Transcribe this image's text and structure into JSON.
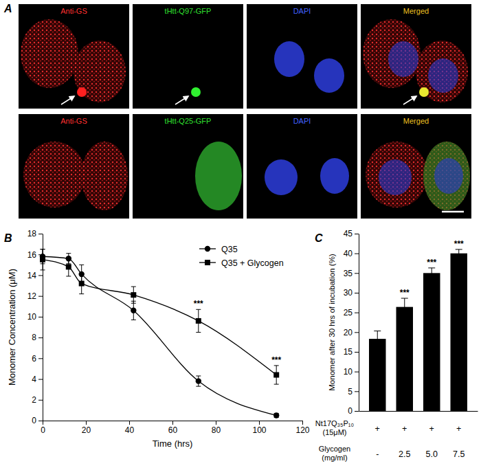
{
  "panel_a": {
    "label": "A",
    "rows": [
      {
        "labels": [
          "Anti-GS",
          "tHtt-Q97-GFP",
          "DAPI",
          "Merged"
        ]
      },
      {
        "labels": [
          "Anti-GS",
          "tHtt-Q25-GFP",
          "DAPI",
          "Merged"
        ]
      }
    ],
    "label_colors": [
      "#ff3030",
      "#30e030",
      "#4060ff",
      "#f0c020"
    ]
  },
  "chart_data": [
    {
      "type": "line",
      "panel_label": "B",
      "x_label": "Time (hrs)",
      "y_label": "Monomer Concentration (μM)",
      "xlim": [
        0,
        120
      ],
      "xticks": [
        0,
        20,
        40,
        60,
        80,
        100,
        120
      ],
      "ylim": [
        0,
        18
      ],
      "yticks": [
        0,
        2,
        4,
        6,
        8,
        10,
        12,
        14,
        16,
        18
      ],
      "grid": false,
      "legend": "upper right",
      "x": [
        0,
        12,
        18,
        42,
        72,
        108
      ],
      "series": [
        {
          "name": "Q35",
          "color": "#000000",
          "marker": "circle",
          "line_style": "solid",
          "values": [
            15.8,
            15.6,
            14.1,
            10.6,
            3.8,
            0.5
          ],
          "errors": [
            0.7,
            0.5,
            0.9,
            0.9,
            0.5,
            0.2
          ],
          "significance": [
            null,
            null,
            null,
            null,
            null,
            null
          ]
        },
        {
          "name": "Q35 + Glycogen",
          "color": "#000000",
          "marker": "square",
          "line_style": "solid",
          "values": [
            15.5,
            14.8,
            13.2,
            12.1,
            9.6,
            4.4
          ],
          "errors": [
            1.0,
            0.9,
            1.0,
            0.8,
            1.1,
            0.9
          ],
          "significance": [
            null,
            null,
            null,
            null,
            "***",
            "***"
          ]
        }
      ]
    },
    {
      "type": "bar",
      "panel_label": "C",
      "y_label": "Monomer after 30 hrs of incubation (%)",
      "categories": [
        null,
        null,
        null,
        null
      ],
      "values": [
        18.3,
        26.4,
        35.0,
        40.0
      ],
      "errors": [
        2.0,
        2.2,
        1.3,
        1.0
      ],
      "significance": [
        null,
        "***",
        "***",
        "***"
      ],
      "color": "#000000",
      "ylim": [
        0,
        45
      ],
      "yticks": [
        0,
        5,
        10,
        15,
        20,
        25,
        30,
        35,
        40,
        45
      ],
      "tick_labels": "y",
      "table": {
        "rows": [
          {
            "label": [
              "Nt17Q₃₅P₁₀",
              "(15μM)"
            ],
            "cells": [
              "+",
              "+",
              "+",
              "+"
            ]
          },
          {
            "label": [
              "Glycogen",
              "(mg/ml)"
            ],
            "cells": [
              "-",
              "2.5",
              "5.0",
              "7.5"
            ]
          }
        ]
      }
    }
  ]
}
